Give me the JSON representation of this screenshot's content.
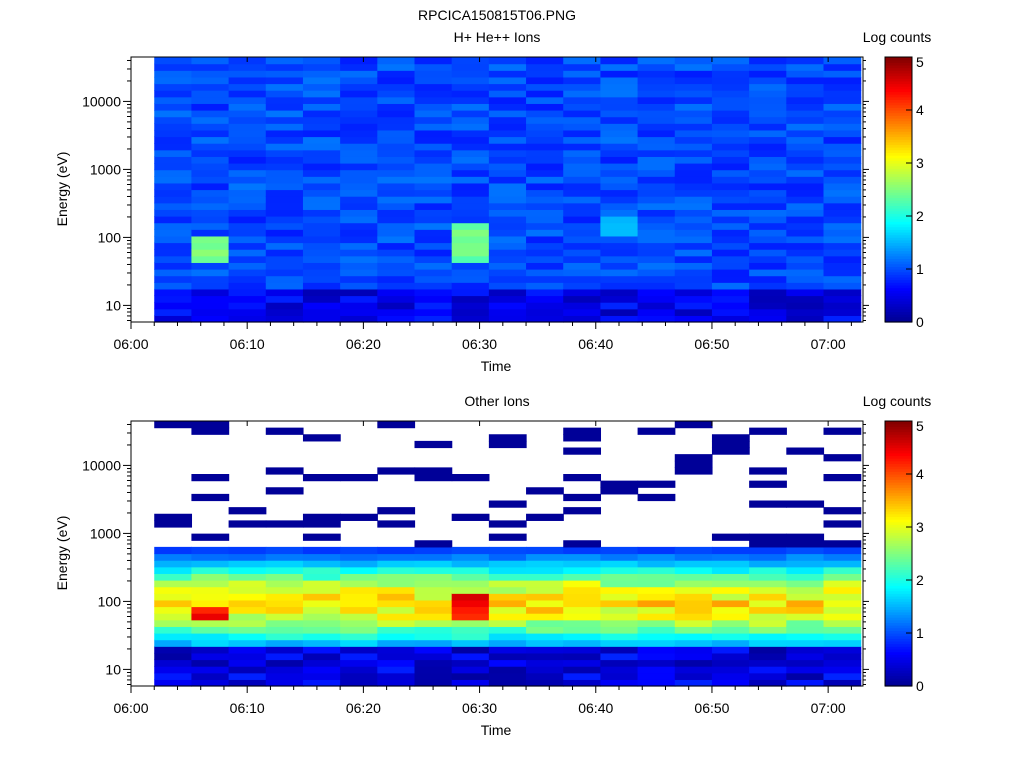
{
  "figure_title": "RPCICA150815T06.PNG",
  "colorbar_stops": [
    "#00008f",
    "#0000ff",
    "#0080ff",
    "#00ffff",
    "#80ff80",
    "#ffff00",
    "#ff8000",
    "#ff0000",
    "#800000"
  ],
  "no_data_color": "#ffffff",
  "chart_data": [
    {
      "type": "heatmap",
      "title": "H+ He++ Ions",
      "xlabel": "Time",
      "ylabel": "Energy (eV)",
      "yscale": "log",
      "ylim": [
        5.7,
        45000
      ],
      "xlim": [
        "06:00",
        "07:03"
      ],
      "xticks": [
        "06:00",
        "06:10",
        "06:20",
        "06:30",
        "06:40",
        "06:50",
        "07:00"
      ],
      "yticks": [
        "10",
        "100",
        "1000",
        "10000"
      ],
      "colorbar": {
        "label": "Log counts",
        "min": 0,
        "max": 5,
        "ticks": [
          "0",
          "1",
          "2",
          "3",
          "4",
          "5"
        ]
      },
      "time_bins_start": "06:02",
      "time_bin_minutes": 3.2,
      "energy_bins": 40,
      "features": [
        {
          "time": "06:06",
          "energy_eV": [
            40,
            100
          ],
          "log_counts": 2.7
        },
        {
          "time": "06:29",
          "energy_eV": [
            40,
            160
          ],
          "log_counts": 2.6
        },
        {
          "time": "06:41",
          "energy_eV": [
            100,
            200
          ],
          "log_counts": 1.7
        }
      ]
    },
    {
      "type": "heatmap",
      "title": "Other Ions",
      "xlabel": "Time",
      "ylabel": "Energy (eV)",
      "yscale": "log",
      "ylim": [
        5.7,
        45000
      ],
      "xlim": [
        "06:00",
        "07:03"
      ],
      "xticks": [
        "06:00",
        "06:10",
        "06:20",
        "06:30",
        "06:40",
        "06:50",
        "07:00"
      ],
      "yticks": [
        "10",
        "100",
        "1000",
        "10000"
      ],
      "colorbar": {
        "label": "Log counts",
        "min": 0,
        "max": 5,
        "ticks": [
          "0",
          "1",
          "2",
          "3",
          "4",
          "5"
        ]
      },
      "time_bins_start": "06:02",
      "time_bin_minutes": 3.2,
      "energy_bins": 40,
      "features": [
        {
          "time": "06:06",
          "energy_eV": [
            50,
            90
          ],
          "log_counts": 4.5
        },
        {
          "time": "06:29",
          "energy_eV": [
            50,
            130
          ],
          "log_counts": 4.6
        },
        {
          "time": "06:40",
          "energy_eV": [
            80,
            200
          ],
          "log_counts": 3.4
        },
        {
          "time": "all",
          "energy_eV": [
            30,
            300
          ],
          "log_counts": 3.0
        }
      ]
    }
  ]
}
